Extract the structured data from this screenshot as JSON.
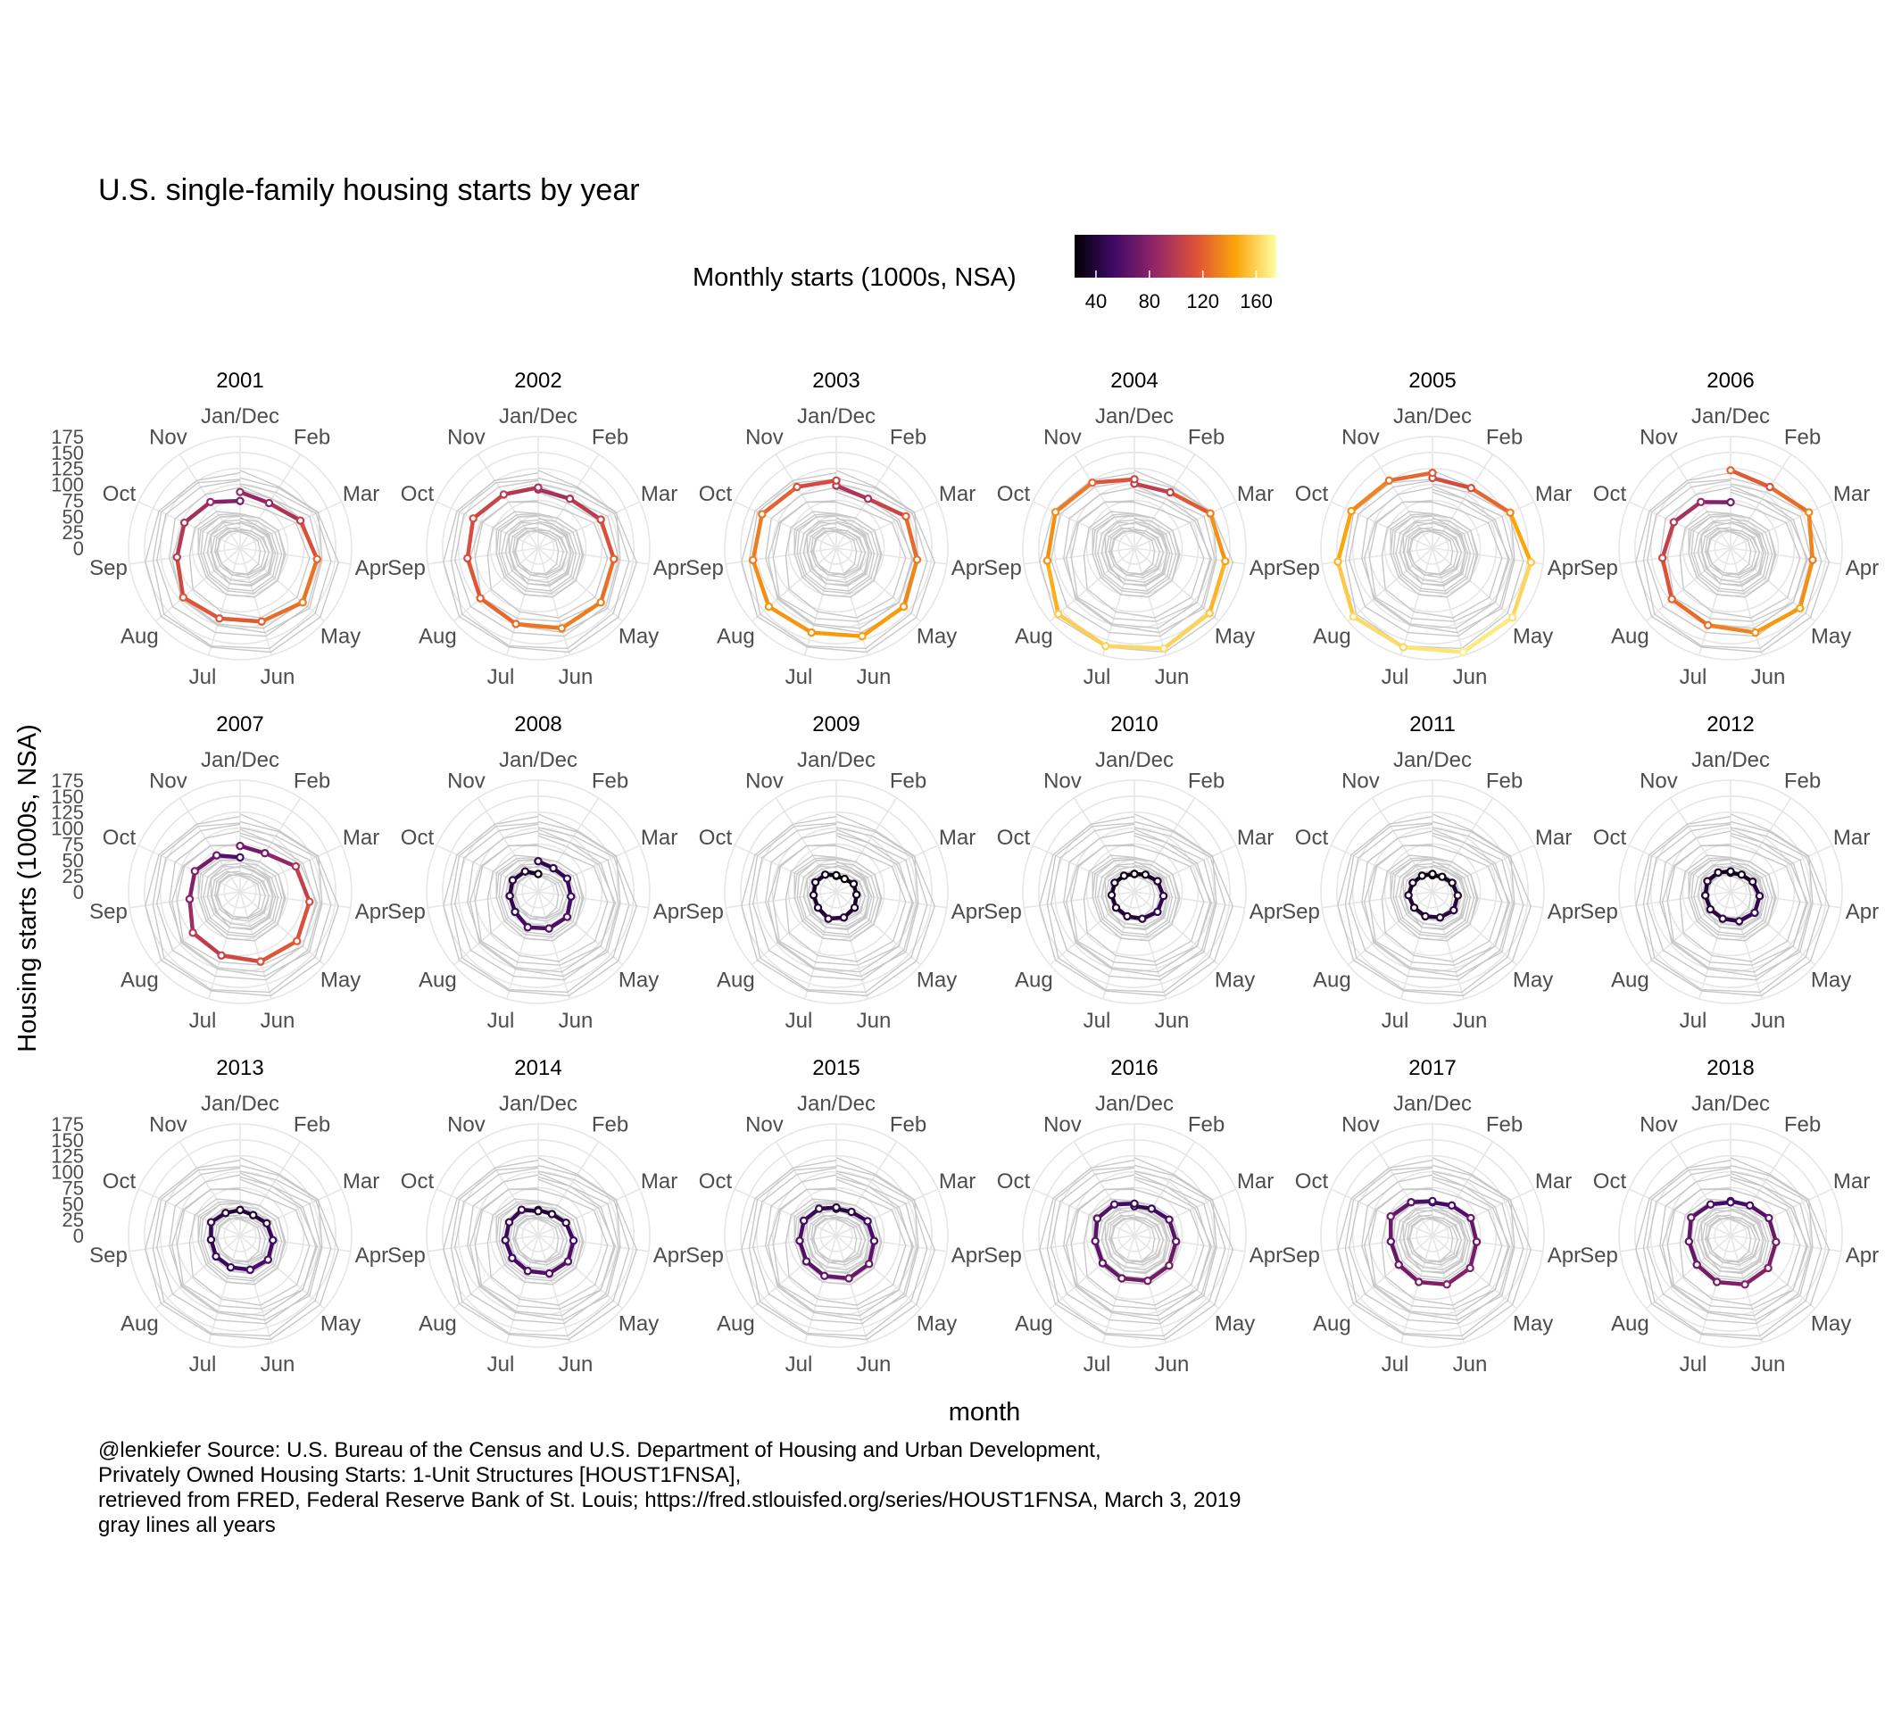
{
  "chart_data": {
    "type": "line",
    "coordinate_system": "polar",
    "title": "U.S. single-family housing starts by year",
    "xlabel": "month",
    "ylabel": "Housing starts (1000s, NSA)",
    "legend": {
      "title": "Monthly starts (1000s, NSA)",
      "placement": "top",
      "ticks": [
        "40",
        "80",
        "120",
        "160"
      ],
      "range": [
        24,
        175
      ],
      "palette": "inferno",
      "colors": [
        "#000004",
        "#420a68",
        "#932667",
        "#dd513a",
        "#fca50a",
        "#fcffa4"
      ]
    },
    "theta_labels": [
      "Jan/Dec",
      "Feb",
      "Mar",
      "Apr",
      "May",
      "Jun",
      "Jul",
      "Aug",
      "Sep",
      "Oct",
      "Nov"
    ],
    "r_ticks": [
      "0",
      "25",
      "50",
      "75",
      "100",
      "125",
      "150",
      "175"
    ],
    "ylim": [
      0,
      175
    ],
    "background_line_color": "#c8c8c8",
    "background_note": "gray lines all years",
    "months": [
      "Jan",
      "Feb",
      "Mar",
      "Apr",
      "May",
      "Jun",
      "Jul",
      "Aug",
      "Sep",
      "Oct",
      "Nov",
      "Dec"
    ],
    "series": [
      {
        "name": "2001",
        "values": [
          88,
          84,
          104,
          122,
          130,
          120,
          115,
          118,
          100,
          96,
          86,
          74
        ]
      },
      {
        "name": "2002",
        "values": [
          92,
          92,
          108,
          120,
          130,
          131,
          124,
          120,
          112,
          112,
          100,
          95
        ]
      },
      {
        "name": "2003",
        "values": [
          98,
          92,
          120,
          128,
          140,
          144,
          138,
          140,
          132,
          128,
          114,
          106
        ]
      },
      {
        "name": "2004",
        "values": [
          101,
          104,
          131,
          144,
          156,
          164,
          160,
          158,
          138,
          136,
          122,
          108
        ]
      },
      {
        "name": "2005",
        "values": [
          110,
          112,
          134,
          156,
          166,
          170,
          162,
          164,
          150,
          140,
          126,
          118
        ]
      },
      {
        "name": "2006",
        "values": [
          122,
          114,
          135,
          130,
          144,
          138,
          126,
          122,
          108,
          98,
          86,
          72
        ]
      },
      {
        "name": "2007",
        "values": [
          72,
          72,
          96,
          110,
          118,
          114,
          104,
          98,
          80,
          78,
          68,
          54
        ]
      },
      {
        "name": "2008",
        "values": [
          48,
          44,
          50,
          52,
          60,
          60,
          58,
          48,
          45,
          44,
          38,
          28
        ]
      },
      {
        "name": "2009",
        "values": [
          25,
          24,
          30,
          32,
          38,
          42,
          44,
          38,
          36,
          36,
          32,
          26
        ]
      },
      {
        "name": "2010",
        "values": [
          28,
          32,
          40,
          46,
          48,
          44,
          40,
          38,
          36,
          34,
          30,
          28
        ]
      },
      {
        "name": "2011",
        "values": [
          26,
          28,
          34,
          40,
          44,
          42,
          40,
          38,
          38,
          34,
          30,
          28
        ]
      },
      {
        "name": "2012",
        "values": [
          30,
          32,
          38,
          46,
          50,
          48,
          44,
          42,
          40,
          40,
          36,
          32
        ]
      },
      {
        "name": "2013",
        "values": [
          40,
          38,
          46,
          52,
          58,
          56,
          52,
          50,
          46,
          50,
          42,
          40
        ]
      },
      {
        "name": "2014",
        "values": [
          40,
          40,
          48,
          56,
          62,
          62,
          58,
          54,
          52,
          50,
          48,
          38
        ]
      },
      {
        "name": "2015",
        "values": [
          42,
          44,
          54,
          60,
          68,
          70,
          66,
          62,
          58,
          56,
          50,
          44
        ]
      },
      {
        "name": "2016",
        "values": [
          46,
          50,
          60,
          66,
          72,
          74,
          70,
          66,
          62,
          64,
          58,
          50
        ]
      },
      {
        "name": "2017",
        "values": [
          52,
          56,
          66,
          70,
          78,
          80,
          76,
          70,
          66,
          72,
          62,
          54
        ]
      },
      {
        "name": "2018",
        "values": [
          54,
          56,
          66,
          72,
          78,
          80,
          76,
          70,
          66,
          68,
          58,
          52
        ]
      }
    ]
  },
  "caption": {
    "lines": [
      "@lenkiefer Source: U.S. Bureau of the Census and U.S. Department of Housing and Urban Development,",
      "Privately Owned Housing Starts: 1-Unit Structures [HOUST1FNSA],",
      "retrieved from FRED, Federal Reserve Bank of St. Louis; https://fred.stlouisfed.org/series/HOUST1FNSA, March 3, 2019",
      "gray lines all years"
    ]
  }
}
